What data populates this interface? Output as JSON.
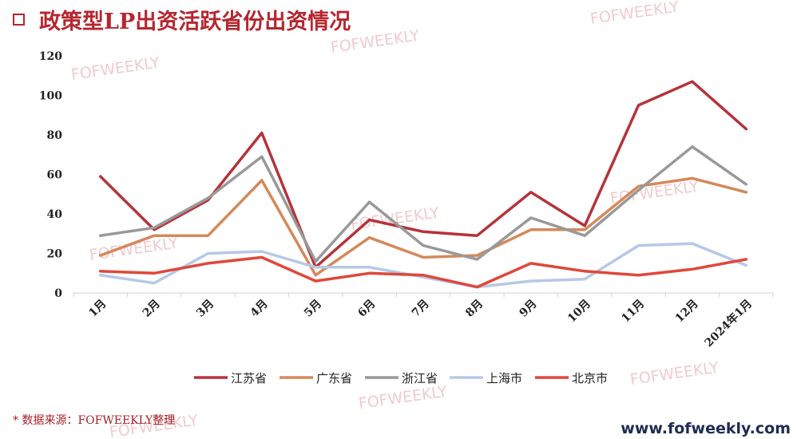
{
  "header": {
    "title": "政策型LP出资活跃省份出资情况"
  },
  "footer": {
    "source": "* 数据来源：FOFWEEKLY整理",
    "website": "www.fofweekly.com"
  },
  "watermark": {
    "text": "FOFWEEKLY"
  },
  "colors": {
    "title": "#b5262f",
    "source": "#a81e24",
    "website": "#1f2c52"
  },
  "chart_data": {
    "type": "line",
    "categories": [
      "1月",
      "2月",
      "3月",
      "4月",
      "5月",
      "6月",
      "7月",
      "8月",
      "9月",
      "10月",
      "11月",
      "12月",
      "2024年1月"
    ],
    "ylim": [
      0,
      120
    ],
    "yticks": [
      0,
      20,
      40,
      60,
      80,
      100,
      120
    ],
    "grid": false,
    "legend": "bottom",
    "series": [
      {
        "name": "江苏省",
        "color": "#b5333b",
        "values": [
          59,
          32,
          47,
          81,
          13,
          37,
          31,
          29,
          51,
          34,
          95,
          107,
          83
        ]
      },
      {
        "name": "广东省",
        "color": "#d4895a",
        "values": [
          19,
          29,
          29,
          57,
          9,
          28,
          18,
          19,
          32,
          32,
          54,
          58,
          51
        ]
      },
      {
        "name": "浙江省",
        "color": "#999999",
        "values": [
          29,
          33,
          48,
          69,
          16,
          46,
          24,
          17,
          38,
          29,
          52,
          74,
          55
        ]
      },
      {
        "name": "上海市",
        "color": "#b7c8e6",
        "values": [
          9,
          5,
          20,
          21,
          13,
          13,
          8,
          3,
          6,
          7,
          24,
          25,
          14
        ]
      },
      {
        "name": "北京市",
        "color": "#e0473b",
        "values": [
          11,
          10,
          15,
          18,
          6,
          10,
          9,
          3,
          15,
          11,
          9,
          12,
          17
        ]
      }
    ]
  }
}
